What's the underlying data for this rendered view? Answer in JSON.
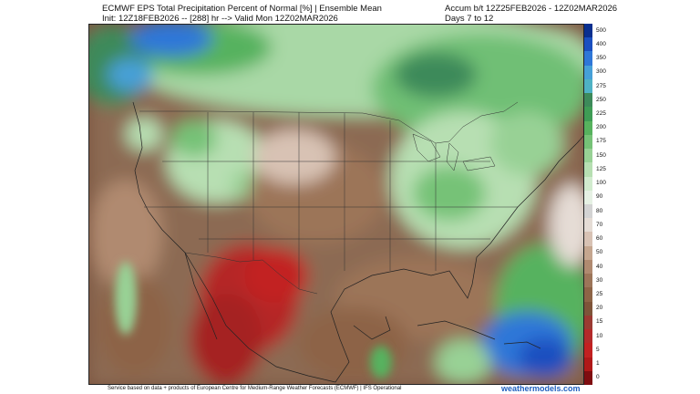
{
  "header": {
    "title_line1": "ECMWF EPS Total Precipitation Percent of Normal [%] | Ensemble Mean",
    "title_line2": "Init: 12Z18FEB2026 -- [288] hr --> Valid Mon 12Z02MAR2026",
    "accum_line": "Accum b/t 12Z25FEB2026 - 12Z02MAR2026",
    "days_line": "Days 7 to 12"
  },
  "legend": {
    "labels": [
      "500",
      "400",
      "350",
      "300",
      "275",
      "250",
      "225",
      "200",
      "175",
      "150",
      "125",
      "100",
      "90",
      "80",
      "70",
      "60",
      "50",
      "40",
      "30",
      "25",
      "20",
      "15",
      "10",
      "5",
      "1",
      "0"
    ],
    "colors": [
      "#0a2f8f",
      "#1a4fc0",
      "#2f77d8",
      "#46a0d8",
      "#4fb2c4",
      "#3d8a5a",
      "#3f9c55",
      "#57b25e",
      "#76c277",
      "#98d195",
      "#b7dfb2",
      "#d1ebce",
      "#e6f1e4",
      "#d3d3d3",
      "#e5dcd5",
      "#d8c2b4",
      "#c5a68f",
      "#b08a70",
      "#9c7559",
      "#8d6446",
      "#7e5439",
      "#9b3a32",
      "#b32a2a",
      "#c22121",
      "#b01818",
      "#7f0d10"
    ]
  },
  "map": {
    "region": "North America / Caribbean",
    "notable": "dry (red) over northern Mexico; wet (blue) over Atlantic east of Caribbean and Gulf of Alaska; greens over Great Lakes and Canada"
  },
  "footer": {
    "credit": "Service based on data + products of European Centre for Medium-Range Weather Forecasts (ECMWF) | IFS Operational",
    "brand": "weathermodels.com"
  }
}
